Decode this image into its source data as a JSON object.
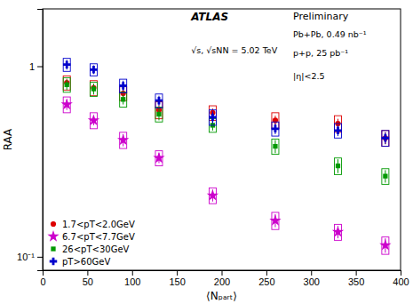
{
  "chart_data": {
    "type": "scatter",
    "x_label": "⟨Nₚₐᵣₜ⟩",
    "y_label": "RAA",
    "log": "y",
    "grid": false,
    "legend": "lower left",
    "xlim": [
      0,
      400
    ],
    "xticks": [
      0,
      50,
      100,
      150,
      200,
      250,
      300,
      350,
      400
    ],
    "ylim": [
      0.085,
      2.0
    ],
    "yticks": [
      {
        "value": 0.1,
        "label": "10⁻¹"
      },
      1
    ],
    "annotations": [
      "ATLAS",
      "√s, √sNN = 5.02 TeV",
      "Preliminary",
      "Pb+Pb, 0.49 nb⁻¹",
      "p+p, 25 pb⁻¹",
      "|η|<2.5"
    ],
    "series": [
      {
        "name": "1.7<pT<2.0GeV",
        "color": "#dd0000",
        "marker": "circle",
        "x": [
          27,
          57,
          90,
          130,
          190,
          260,
          330,
          383
        ],
        "values": [
          0.82,
          0.77,
          0.72,
          0.59,
          0.57,
          0.52,
          0.5,
          0.42
        ],
        "yerr_lo": [
          0.04,
          0.04,
          0.04,
          0.03,
          0.03,
          0.03,
          0.03,
          0.03
        ],
        "yerr_hi": [
          0.04,
          0.04,
          0.04,
          0.03,
          0.03,
          0.03,
          0.03,
          0.03
        ],
        "sys_lo": [
          0.07,
          0.07,
          0.06,
          0.06,
          0.05,
          0.05,
          0.05,
          0.04
        ],
        "sys_hi": [
          0.07,
          0.07,
          0.06,
          0.06,
          0.05,
          0.05,
          0.05,
          0.04
        ]
      },
      {
        "name": "6.7<pT<7.7GeV",
        "color": "#cc00cc",
        "marker": "star",
        "x": [
          27,
          57,
          90,
          130,
          190,
          260,
          330,
          383
        ],
        "values": [
          0.63,
          0.52,
          0.41,
          0.33,
          0.21,
          0.155,
          0.135,
          0.115
        ],
        "yerr_lo": [
          0.04,
          0.03,
          0.03,
          0.02,
          0.015,
          0.012,
          0.01,
          0.01
        ],
        "yerr_hi": [
          0.04,
          0.03,
          0.03,
          0.02,
          0.015,
          0.012,
          0.01,
          0.01
        ],
        "sys_lo": [
          0.06,
          0.05,
          0.04,
          0.03,
          0.02,
          0.016,
          0.013,
          0.012
        ],
        "sys_hi": [
          0.06,
          0.05,
          0.04,
          0.03,
          0.02,
          0.016,
          0.013,
          0.012
        ]
      },
      {
        "name": "26<pT<30GeV",
        "color": "#009900",
        "marker": "square",
        "x": [
          27,
          57,
          90,
          130,
          190,
          260,
          330,
          383
        ],
        "values": [
          0.8,
          0.76,
          0.67,
          0.56,
          0.49,
          0.38,
          0.3,
          0.265
        ],
        "yerr_lo": [
          0.05,
          0.05,
          0.04,
          0.04,
          0.03,
          0.03,
          0.025,
          0.02
        ],
        "yerr_hi": [
          0.05,
          0.05,
          0.04,
          0.04,
          0.03,
          0.03,
          0.025,
          0.02
        ],
        "sys_lo": [
          0.07,
          0.065,
          0.06,
          0.05,
          0.04,
          0.035,
          0.03,
          0.025
        ],
        "sys_hi": [
          0.07,
          0.065,
          0.06,
          0.05,
          0.04,
          0.035,
          0.03,
          0.025
        ]
      },
      {
        "name": "pT>60GeV",
        "color": "#0000cc",
        "marker": "plus",
        "x": [
          27,
          57,
          90,
          130,
          190,
          260,
          330,
          383
        ],
        "values": [
          1.02,
          0.96,
          0.79,
          0.66,
          0.54,
          0.47,
          0.46,
          0.42
        ],
        "yerr_lo": [
          0.06,
          0.05,
          0.05,
          0.04,
          0.04,
          0.03,
          0.03,
          0.03
        ],
        "yerr_hi": [
          0.06,
          0.05,
          0.05,
          0.04,
          0.04,
          0.03,
          0.03,
          0.03
        ],
        "sys_lo": [
          0.08,
          0.07,
          0.065,
          0.055,
          0.05,
          0.04,
          0.04,
          0.04
        ],
        "sys_hi": [
          0.08,
          0.07,
          0.065,
          0.055,
          0.05,
          0.04,
          0.04,
          0.04
        ]
      }
    ]
  }
}
